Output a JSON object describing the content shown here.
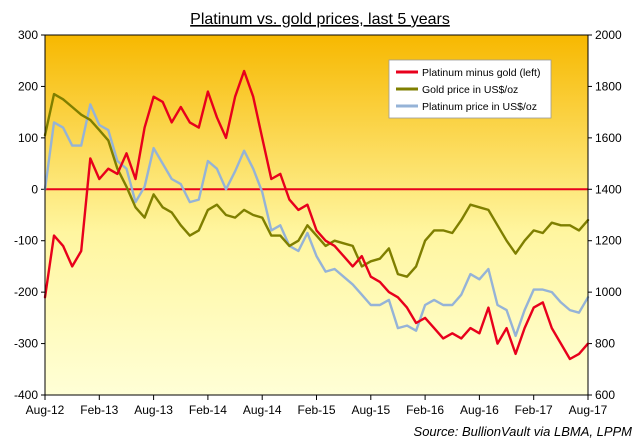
{
  "chart_data": {
    "type": "line",
    "title": "Platinum vs. gold prices, last 5 years",
    "source": "Source:  BullionVault via LBMA, LPPM",
    "x_ticks": [
      "Aug-12",
      "Feb-13",
      "Aug-13",
      "Feb-14",
      "Aug-14",
      "Feb-15",
      "Aug-15",
      "Feb-16",
      "Aug-16",
      "Feb-17",
      "Aug-17"
    ],
    "y_left": {
      "min": -400,
      "max": 300,
      "ticks": [
        "300",
        "200",
        "100",
        "0",
        "-100",
        "-200",
        "-300",
        "-400"
      ]
    },
    "y_right": {
      "min": 600,
      "max": 2000,
      "ticks": [
        "2000",
        "1800",
        "1600",
        "1400",
        "1200",
        "1000",
        "800",
        "600"
      ]
    },
    "zero_line": 0,
    "background": {
      "top": "#F7B800",
      "bottom": "#FFFFD6"
    },
    "legend_position": "top-right",
    "series": [
      {
        "name": "Platinum minus gold (left)",
        "axis": "left",
        "color": "#E8001C",
        "x": [
          "Aug-12",
          "Sep-12",
          "Oct-12",
          "Nov-12",
          "Dec-12",
          "Jan-13",
          "Feb-13",
          "Mar-13",
          "Apr-13",
          "May-13",
          "Jun-13",
          "Jul-13",
          "Aug-13",
          "Sep-13",
          "Oct-13",
          "Nov-13",
          "Dec-13",
          "Jan-14",
          "Feb-14",
          "Mar-14",
          "Apr-14",
          "May-14",
          "Jun-14",
          "Jul-14",
          "Aug-14",
          "Sep-14",
          "Oct-14",
          "Nov-14",
          "Dec-14",
          "Jan-15",
          "Feb-15",
          "Mar-15",
          "Apr-15",
          "May-15",
          "Jun-15",
          "Jul-15",
          "Aug-15",
          "Sep-15",
          "Oct-15",
          "Nov-15",
          "Dec-15",
          "Jan-16",
          "Feb-16",
          "Mar-16",
          "Apr-16",
          "May-16",
          "Jun-16",
          "Jul-16",
          "Aug-16",
          "Sep-16",
          "Oct-16",
          "Nov-16",
          "Dec-16",
          "Jan-17",
          "Feb-17",
          "Mar-17",
          "Apr-17",
          "May-17",
          "Jun-17",
          "Jul-17",
          "Aug-17"
        ],
        "values": [
          -210,
          -90,
          -110,
          -150,
          -120,
          60,
          20,
          40,
          30,
          70,
          20,
          120,
          180,
          170,
          130,
          160,
          130,
          120,
          190,
          140,
          100,
          180,
          230,
          180,
          100,
          20,
          30,
          -20,
          -40,
          -30,
          -80,
          -100,
          -110,
          -130,
          -150,
          -130,
          -170,
          -180,
          -200,
          -210,
          -230,
          -260,
          -250,
          -270,
          -290,
          -280,
          -290,
          -270,
          -280,
          -230,
          -300,
          -270,
          -320,
          -270,
          -230,
          -220,
          -270,
          -300,
          -330,
          -320,
          -300
        ]
      },
      {
        "name": "Gold price in US$/oz",
        "axis": "right",
        "color": "#7F7F00",
        "x": [
          "Aug-12",
          "Sep-12",
          "Oct-12",
          "Nov-12",
          "Dec-12",
          "Jan-13",
          "Feb-13",
          "Mar-13",
          "Apr-13",
          "May-13",
          "Jun-13",
          "Jul-13",
          "Aug-13",
          "Sep-13",
          "Oct-13",
          "Nov-13",
          "Dec-13",
          "Jan-14",
          "Feb-14",
          "Mar-14",
          "Apr-14",
          "May-14",
          "Jun-14",
          "Jul-14",
          "Aug-14",
          "Sep-14",
          "Oct-14",
          "Nov-14",
          "Dec-14",
          "Jan-15",
          "Feb-15",
          "Mar-15",
          "Apr-15",
          "May-15",
          "Jun-15",
          "Jul-15",
          "Aug-15",
          "Sep-15",
          "Oct-15",
          "Nov-15",
          "Dec-15",
          "Jan-16",
          "Feb-16",
          "Mar-16",
          "Apr-16",
          "May-16",
          "Jun-16",
          "Jul-16",
          "Aug-16",
          "Sep-16",
          "Oct-16",
          "Nov-16",
          "Dec-16",
          "Jan-17",
          "Feb-17",
          "Mar-17",
          "Apr-17",
          "May-17",
          "Jun-17",
          "Jul-17",
          "Aug-17"
        ],
        "values": [
          1610,
          1770,
          1750,
          1720,
          1690,
          1670,
          1630,
          1590,
          1480,
          1410,
          1330,
          1290,
          1380,
          1330,
          1310,
          1260,
          1220,
          1240,
          1320,
          1340,
          1300,
          1290,
          1320,
          1300,
          1290,
          1220,
          1220,
          1180,
          1200,
          1260,
          1220,
          1180,
          1200,
          1190,
          1180,
          1100,
          1120,
          1130,
          1170,
          1070,
          1060,
          1100,
          1200,
          1240,
          1240,
          1230,
          1280,
          1340,
          1330,
          1320,
          1260,
          1200,
          1150,
          1200,
          1240,
          1230,
          1270,
          1260,
          1260,
          1240,
          1280
        ]
      },
      {
        "name": "Platinum price in US$/oz",
        "axis": "right",
        "color": "#95B3D7",
        "x": [
          "Aug-12",
          "Sep-12",
          "Oct-12",
          "Nov-12",
          "Dec-12",
          "Jan-13",
          "Feb-13",
          "Mar-13",
          "Apr-13",
          "May-13",
          "Jun-13",
          "Jul-13",
          "Aug-13",
          "Sep-13",
          "Oct-13",
          "Nov-13",
          "Dec-13",
          "Jan-14",
          "Feb-14",
          "Mar-14",
          "Apr-14",
          "May-14",
          "Jun-14",
          "Jul-14",
          "Aug-14",
          "Sep-14",
          "Oct-14",
          "Nov-14",
          "Dec-14",
          "Jan-15",
          "Feb-15",
          "Mar-15",
          "Apr-15",
          "May-15",
          "Jun-15",
          "Jul-15",
          "Aug-15",
          "Sep-15",
          "Oct-15",
          "Nov-15",
          "Dec-15",
          "Jan-16",
          "Feb-16",
          "Mar-16",
          "Apr-16",
          "May-16",
          "Jun-16",
          "Jul-16",
          "Aug-16",
          "Sep-16",
          "Oct-16",
          "Nov-16",
          "Dec-16",
          "Jan-17",
          "Feb-17",
          "Mar-17",
          "Apr-17",
          "May-17",
          "Jun-17",
          "Jul-17",
          "Aug-17"
        ],
        "values": [
          1400,
          1660,
          1640,
          1570,
          1570,
          1730,
          1650,
          1630,
          1510,
          1480,
          1350,
          1410,
          1560,
          1500,
          1440,
          1420,
          1350,
          1360,
          1510,
          1480,
          1400,
          1470,
          1550,
          1480,
          1390,
          1240,
          1260,
          1180,
          1160,
          1230,
          1140,
          1080,
          1090,
          1060,
          1030,
          990,
          950,
          950,
          970,
          860,
          870,
          850,
          950,
          970,
          950,
          950,
          990,
          1070,
          1050,
          1090,
          950,
          930,
          830,
          930,
          1010,
          1010,
          1000,
          960,
          930,
          920,
          980
        ]
      }
    ]
  }
}
